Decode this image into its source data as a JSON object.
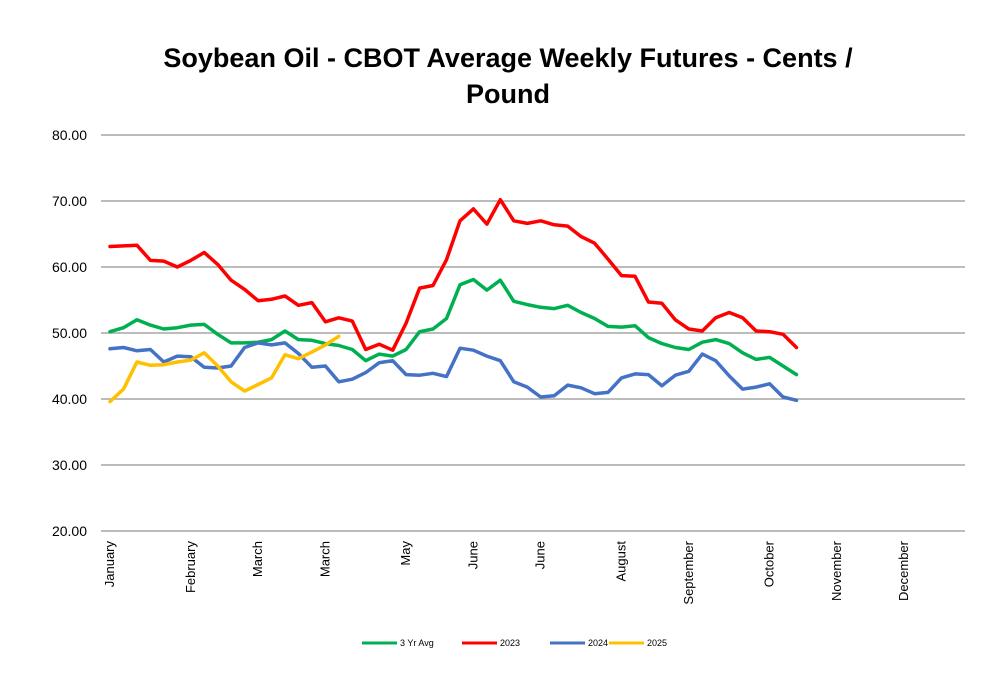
{
  "chart_data": {
    "type": "line",
    "title_line1": "Soybean Oil - CBOT Average Weekly Futures - Cents /",
    "title_line2": "Pound",
    "title": "Soybean Oil - CBOT Average Weekly Futures - Cents / Pound",
    "xlabel": "",
    "ylabel": "",
    "ylim": [
      20,
      80
    ],
    "yticks": [
      "20.00",
      "30.00",
      "40.00",
      "50.00",
      "60.00",
      "70.00",
      "80.00"
    ],
    "x_tick_labels": [
      "January",
      "February",
      "March",
      "March",
      "May",
      "June",
      "June",
      "August",
      "September",
      "October",
      "November",
      "December"
    ],
    "x_tick_weeks": [
      1,
      7,
      12,
      17,
      23,
      28,
      33,
      39,
      44,
      50,
      55,
      60
    ],
    "weeks": 64,
    "grid": true,
    "legend_position": "bottom",
    "series": [
      {
        "name": "3 Yr Avg",
        "color": "#00b050",
        "values": [
          50.2,
          50.8,
          52.0,
          51.2,
          50.6,
          50.8,
          51.2,
          51.3,
          49.8,
          48.5,
          48.5,
          48.6,
          49.0,
          50.3,
          49.0,
          48.9,
          48.4,
          48.1,
          47.5,
          45.8,
          46.8,
          46.5,
          47.5,
          50.2,
          50.6,
          52.2,
          57.3,
          58.1,
          56.5,
          58.0,
          54.8,
          54.3,
          53.9,
          53.7,
          54.2,
          53.1,
          52.2,
          51.0,
          50.9,
          51.1,
          49.3,
          48.4,
          47.8,
          47.5,
          48.6,
          49.0,
          48.4,
          47.0,
          46.0,
          46.3,
          45.0,
          43.7
        ]
      },
      {
        "name": "2023",
        "color": "#ff0000",
        "values": [
          63.1,
          63.2,
          63.3,
          61.0,
          60.9,
          60.0,
          61.0,
          62.2,
          60.4,
          58.0,
          56.6,
          54.9,
          55.1,
          55.6,
          54.2,
          54.6,
          51.7,
          52.3,
          51.8,
          47.5,
          48.3,
          47.4,
          51.5,
          56.8,
          57.2,
          61.1,
          67.0,
          68.8,
          66.5,
          70.2,
          67.0,
          66.6,
          67.0,
          66.4,
          66.2,
          64.6,
          63.6,
          61.2,
          58.7,
          58.6,
          54.7,
          54.5,
          52.0,
          50.6,
          50.3,
          52.3,
          53.1,
          52.3,
          50.3,
          50.2,
          49.8,
          47.8
        ]
      },
      {
        "name": "2024",
        "color": "#4472c4",
        "values": [
          47.6,
          47.8,
          47.3,
          47.5,
          45.6,
          46.5,
          46.4,
          44.8,
          44.7,
          45.0,
          47.8,
          48.5,
          48.2,
          48.5,
          46.9,
          44.8,
          45.0,
          42.6,
          43.0,
          44.0,
          45.5,
          45.8,
          43.7,
          43.6,
          43.9,
          43.4,
          47.7,
          47.4,
          46.5,
          45.8,
          42.6,
          41.8,
          40.3,
          40.5,
          42.1,
          41.7,
          40.8,
          41.0,
          43.2,
          43.8,
          43.7,
          42.0,
          43.6,
          44.2,
          46.8,
          45.8,
          43.5,
          41.5,
          41.8,
          42.3,
          40.3,
          39.8
        ]
      },
      {
        "name": "2025",
        "color": "#ffc000",
        "values": [
          39.6,
          41.5,
          45.6,
          45.1,
          45.2,
          45.6,
          45.9,
          47.0,
          45.0,
          42.6,
          41.2,
          42.2,
          43.2,
          46.7,
          46.1,
          47.1,
          48.2,
          49.5
        ]
      }
    ]
  }
}
